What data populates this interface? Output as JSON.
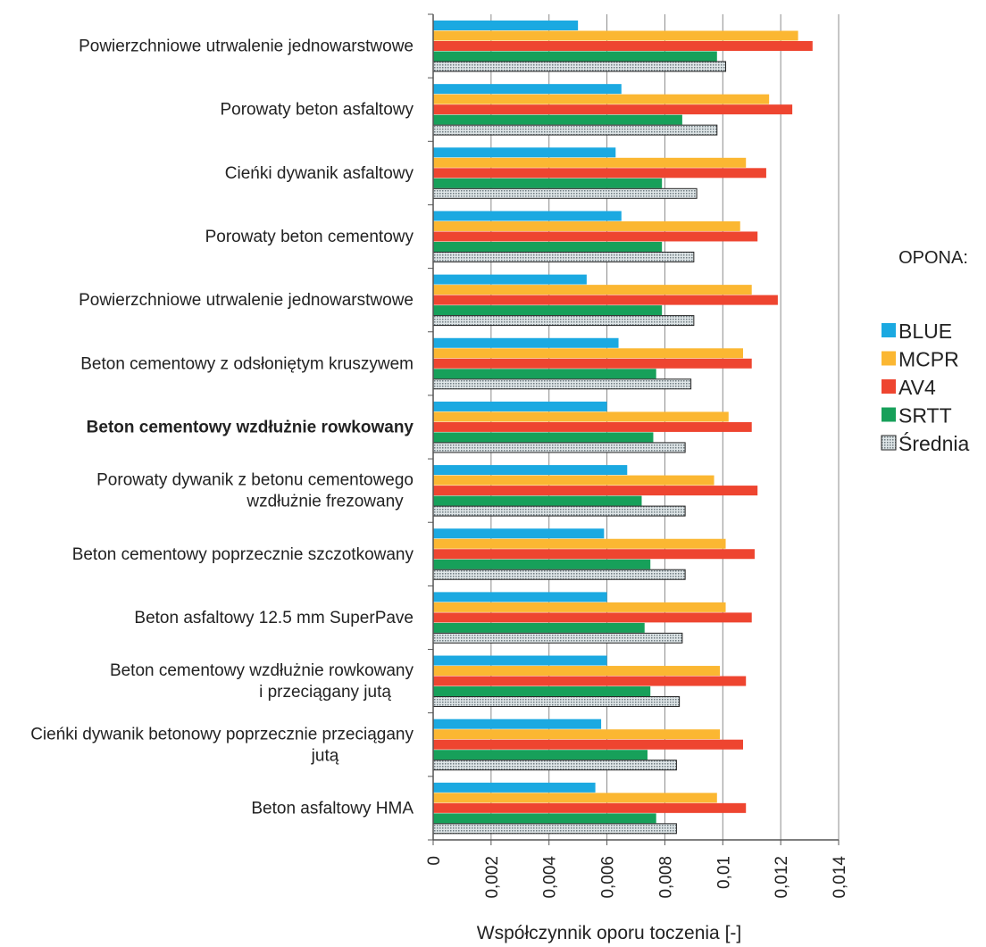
{
  "chart_data": {
    "type": "bar",
    "orientation": "horizontal",
    "xlabel": "Współczynnik oporu toczenia [-]",
    "xlim": [
      0,
      0.014
    ],
    "xticks": [
      "0",
      "0,002",
      "0,004",
      "0,006",
      "0,008",
      "0,01",
      "0,012",
      "0,014"
    ],
    "xtick_values": [
      0,
      0.002,
      0.004,
      0.006,
      0.008,
      0.01,
      0.012,
      0.014
    ],
    "grid": true,
    "legend_title": "OPONA:",
    "legend_position": "right",
    "categories": [
      [
        "Powierzchniowe utrwalenie jednowarstwowe"
      ],
      [
        "Porowaty beton asfaltowy"
      ],
      [
        "Cieńki dywanik asfaltowy"
      ],
      [
        "Porowaty beton cementowy"
      ],
      [
        "Powierzchniowe utrwalenie jednowarstwowe"
      ],
      [
        "Beton cementowy z odsłoniętym kruszywem"
      ],
      [
        "Beton cementowy wzdłużnie rowkowany"
      ],
      [
        "Porowaty dywanik z betonu cementowego",
        "wzdłużnie frezowany"
      ],
      [
        "Beton cementowy poprzecznie szczotkowany"
      ],
      [
        "Beton asfaltowy 12.5 mm SuperPave"
      ],
      [
        "Beton cementowy wzdłużnie rowkowany",
        "i przeciągany jutą"
      ],
      [
        "Cieńki dywanik betonowy poprzecznie przeciągany",
        "jutą"
      ],
      [
        "Beton asfaltowy HMA"
      ]
    ],
    "bold_category_index": 6,
    "series": [
      {
        "name": "BLUE",
        "color": "#1ba9e1",
        "values": [
          0.005,
          0.0065,
          0.0063,
          0.0065,
          0.0053,
          0.0064,
          0.006,
          0.0067,
          0.0059,
          0.006,
          0.006,
          0.0058,
          0.0056
        ]
      },
      {
        "name": "MCPR",
        "color": "#fbb732",
        "values": [
          0.0126,
          0.0116,
          0.0108,
          0.0106,
          0.011,
          0.0107,
          0.0102,
          0.0097,
          0.0101,
          0.0101,
          0.0099,
          0.0099,
          0.0098
        ]
      },
      {
        "name": "AV4",
        "color": "#ee4530",
        "values": [
          0.0131,
          0.0124,
          0.0115,
          0.0112,
          0.0119,
          0.011,
          0.011,
          0.0112,
          0.0111,
          0.011,
          0.0108,
          0.0107,
          0.0108
        ]
      },
      {
        "name": "SRTT",
        "color": "#17a05a",
        "values": [
          0.0098,
          0.0086,
          0.0079,
          0.0079,
          0.0079,
          0.0077,
          0.0076,
          0.0072,
          0.0075,
          0.0073,
          0.0075,
          0.0074,
          0.0077
        ]
      },
      {
        "name": "Średnia",
        "color": "#c9d3d6",
        "pattern": "dotted",
        "values": [
          0.0101,
          0.0098,
          0.0091,
          0.009,
          0.009,
          0.0089,
          0.0087,
          0.0087,
          0.0087,
          0.0086,
          0.0085,
          0.0084,
          0.0084
        ]
      }
    ]
  }
}
